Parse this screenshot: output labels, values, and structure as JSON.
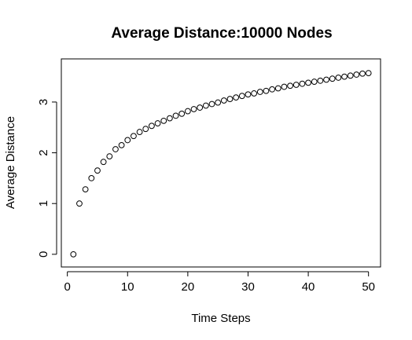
{
  "chart_data": {
    "type": "scatter",
    "title": "Average Distance:10000 Nodes",
    "xlabel": "Time Steps",
    "ylabel": "Average Distance",
    "xlim": [
      -1,
      52
    ],
    "ylim": [
      -0.25,
      3.85
    ],
    "xticks": [
      0,
      10,
      20,
      30,
      40,
      50
    ],
    "yticks": [
      0,
      1,
      2,
      3
    ],
    "grid": false,
    "legend": "none",
    "marker": "open-circle",
    "x": [
      1,
      2,
      3,
      4,
      5,
      6,
      7,
      8,
      9,
      10,
      11,
      12,
      13,
      14,
      15,
      16,
      17,
      18,
      19,
      20,
      21,
      22,
      23,
      24,
      25,
      26,
      27,
      28,
      29,
      30,
      31,
      32,
      33,
      34,
      35,
      36,
      37,
      38,
      39,
      40,
      41,
      42,
      43,
      44,
      45,
      46,
      47,
      48,
      49,
      50
    ],
    "y": [
      0.0,
      1.0,
      1.28,
      1.5,
      1.65,
      1.82,
      1.93,
      2.07,
      2.15,
      2.25,
      2.33,
      2.41,
      2.47,
      2.53,
      2.58,
      2.63,
      2.68,
      2.73,
      2.77,
      2.82,
      2.86,
      2.89,
      2.93,
      2.96,
      2.99,
      3.03,
      3.06,
      3.09,
      3.12,
      3.15,
      3.17,
      3.2,
      3.22,
      3.25,
      3.27,
      3.3,
      3.32,
      3.34,
      3.36,
      3.38,
      3.4,
      3.42,
      3.44,
      3.46,
      3.48,
      3.5,
      3.52,
      3.54,
      3.56,
      3.57
    ]
  }
}
